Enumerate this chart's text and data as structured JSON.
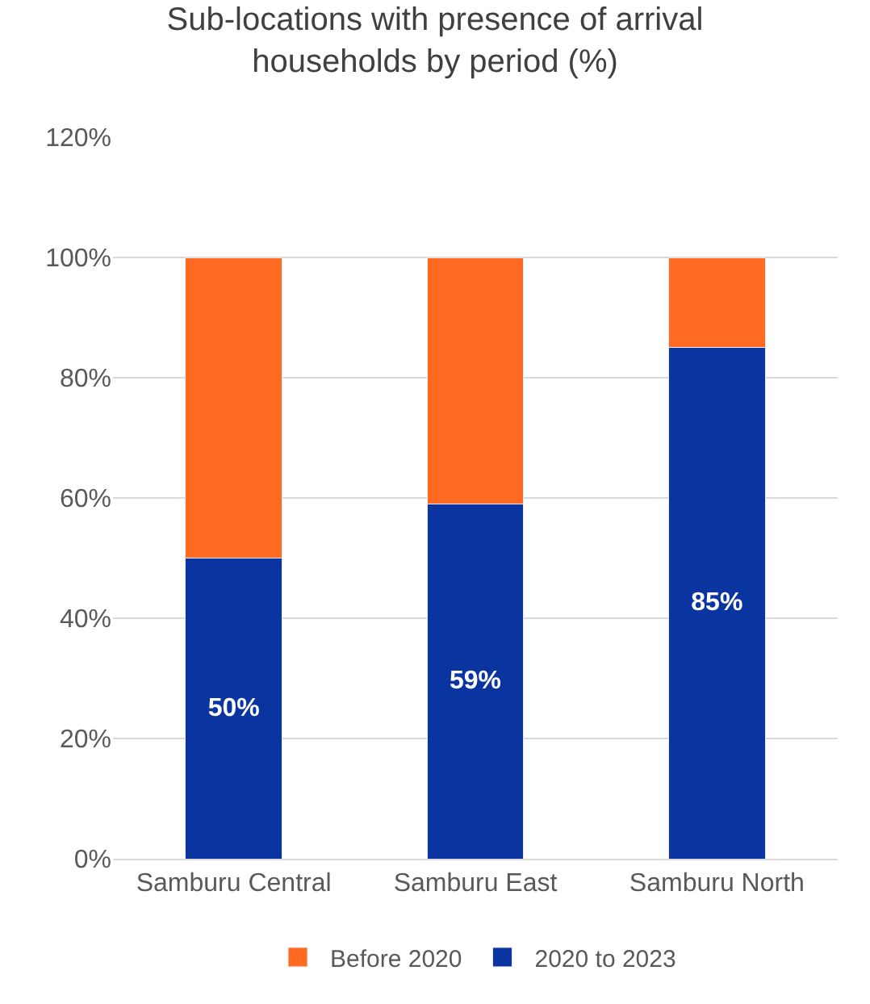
{
  "chart_data": {
    "type": "bar",
    "title": "Sub-locations with presence of arrival households by period (%)",
    "stacked": true,
    "categories": [
      "Samburu Central",
      "Samburu East",
      "Samburu North"
    ],
    "series": [
      {
        "name": "2020 to 2023",
        "color": "#0a35a0",
        "values": [
          50,
          59,
          85
        ],
        "value_labels": [
          "50%",
          "59%",
          "85%"
        ]
      },
      {
        "name": "Before 2020",
        "color": "#ff6a22",
        "values": [
          50,
          41,
          15
        ]
      }
    ],
    "ylim": [
      0,
      120
    ],
    "yticks": [
      {
        "value": 0,
        "label": "0%"
      },
      {
        "value": 20,
        "label": "20%"
      },
      {
        "value": 40,
        "label": "40%"
      },
      {
        "value": 60,
        "label": "60%"
      },
      {
        "value": 80,
        "label": "80%"
      },
      {
        "value": 100,
        "label": "100%"
      },
      {
        "value": 120,
        "label": "120%"
      }
    ],
    "grid": "y",
    "legend": "bottom"
  }
}
